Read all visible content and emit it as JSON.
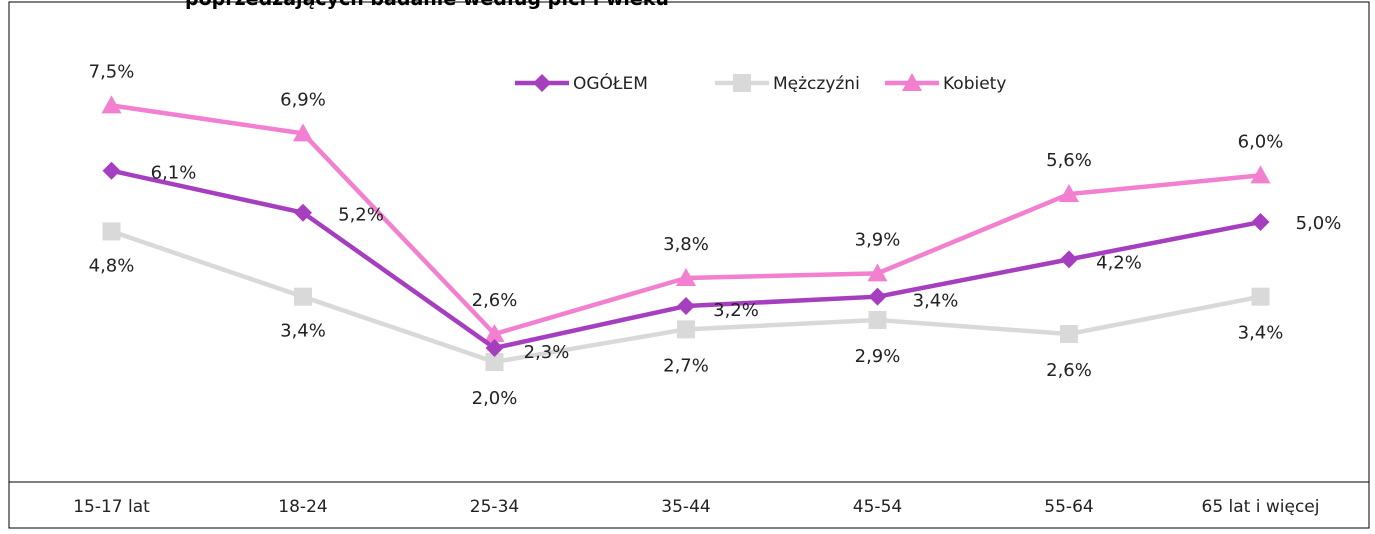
{
  "chart_data": {
    "type": "line",
    "title": "poprzedzających badanie według płci i wieku",
    "categories": [
      "15-17 lat",
      "18-24",
      "25-34",
      "35-44",
      "45-54",
      "55-64",
      "65 lat i więcej"
    ],
    "series": [
      {
        "name": "OGÓŁEM",
        "color": "#a63fbf",
        "marker": "diamond",
        "values": [
          6.1,
          5.2,
          2.3,
          3.2,
          3.4,
          4.2,
          5.0
        ],
        "labels": [
          "6,1%",
          "5,2%",
          "2,3%",
          "3,2%",
          "3,4%",
          "4,2%",
          "5,0%"
        ]
      },
      {
        "name": "Mężczyźni",
        "color": "#d9d9d9",
        "marker": "square",
        "values": [
          4.8,
          3.4,
          2.0,
          2.7,
          2.9,
          2.6,
          3.4
        ],
        "labels": [
          "4,8%",
          "3,4%",
          "2,0%",
          "2,7%",
          "2,9%",
          "2,6%",
          "3,4%"
        ]
      },
      {
        "name": "Kobiety",
        "color": "#f27fcf",
        "marker": "triangle",
        "values": [
          7.5,
          6.9,
          2.6,
          3.8,
          3.9,
          5.6,
          6.0
        ],
        "labels": [
          "7,5%",
          "6,9%",
          "2,6%",
          "3,8%",
          "3,9%",
          "5,6%",
          "6,0%"
        ]
      }
    ],
    "legend_position": "top-center",
    "grid": false
  }
}
